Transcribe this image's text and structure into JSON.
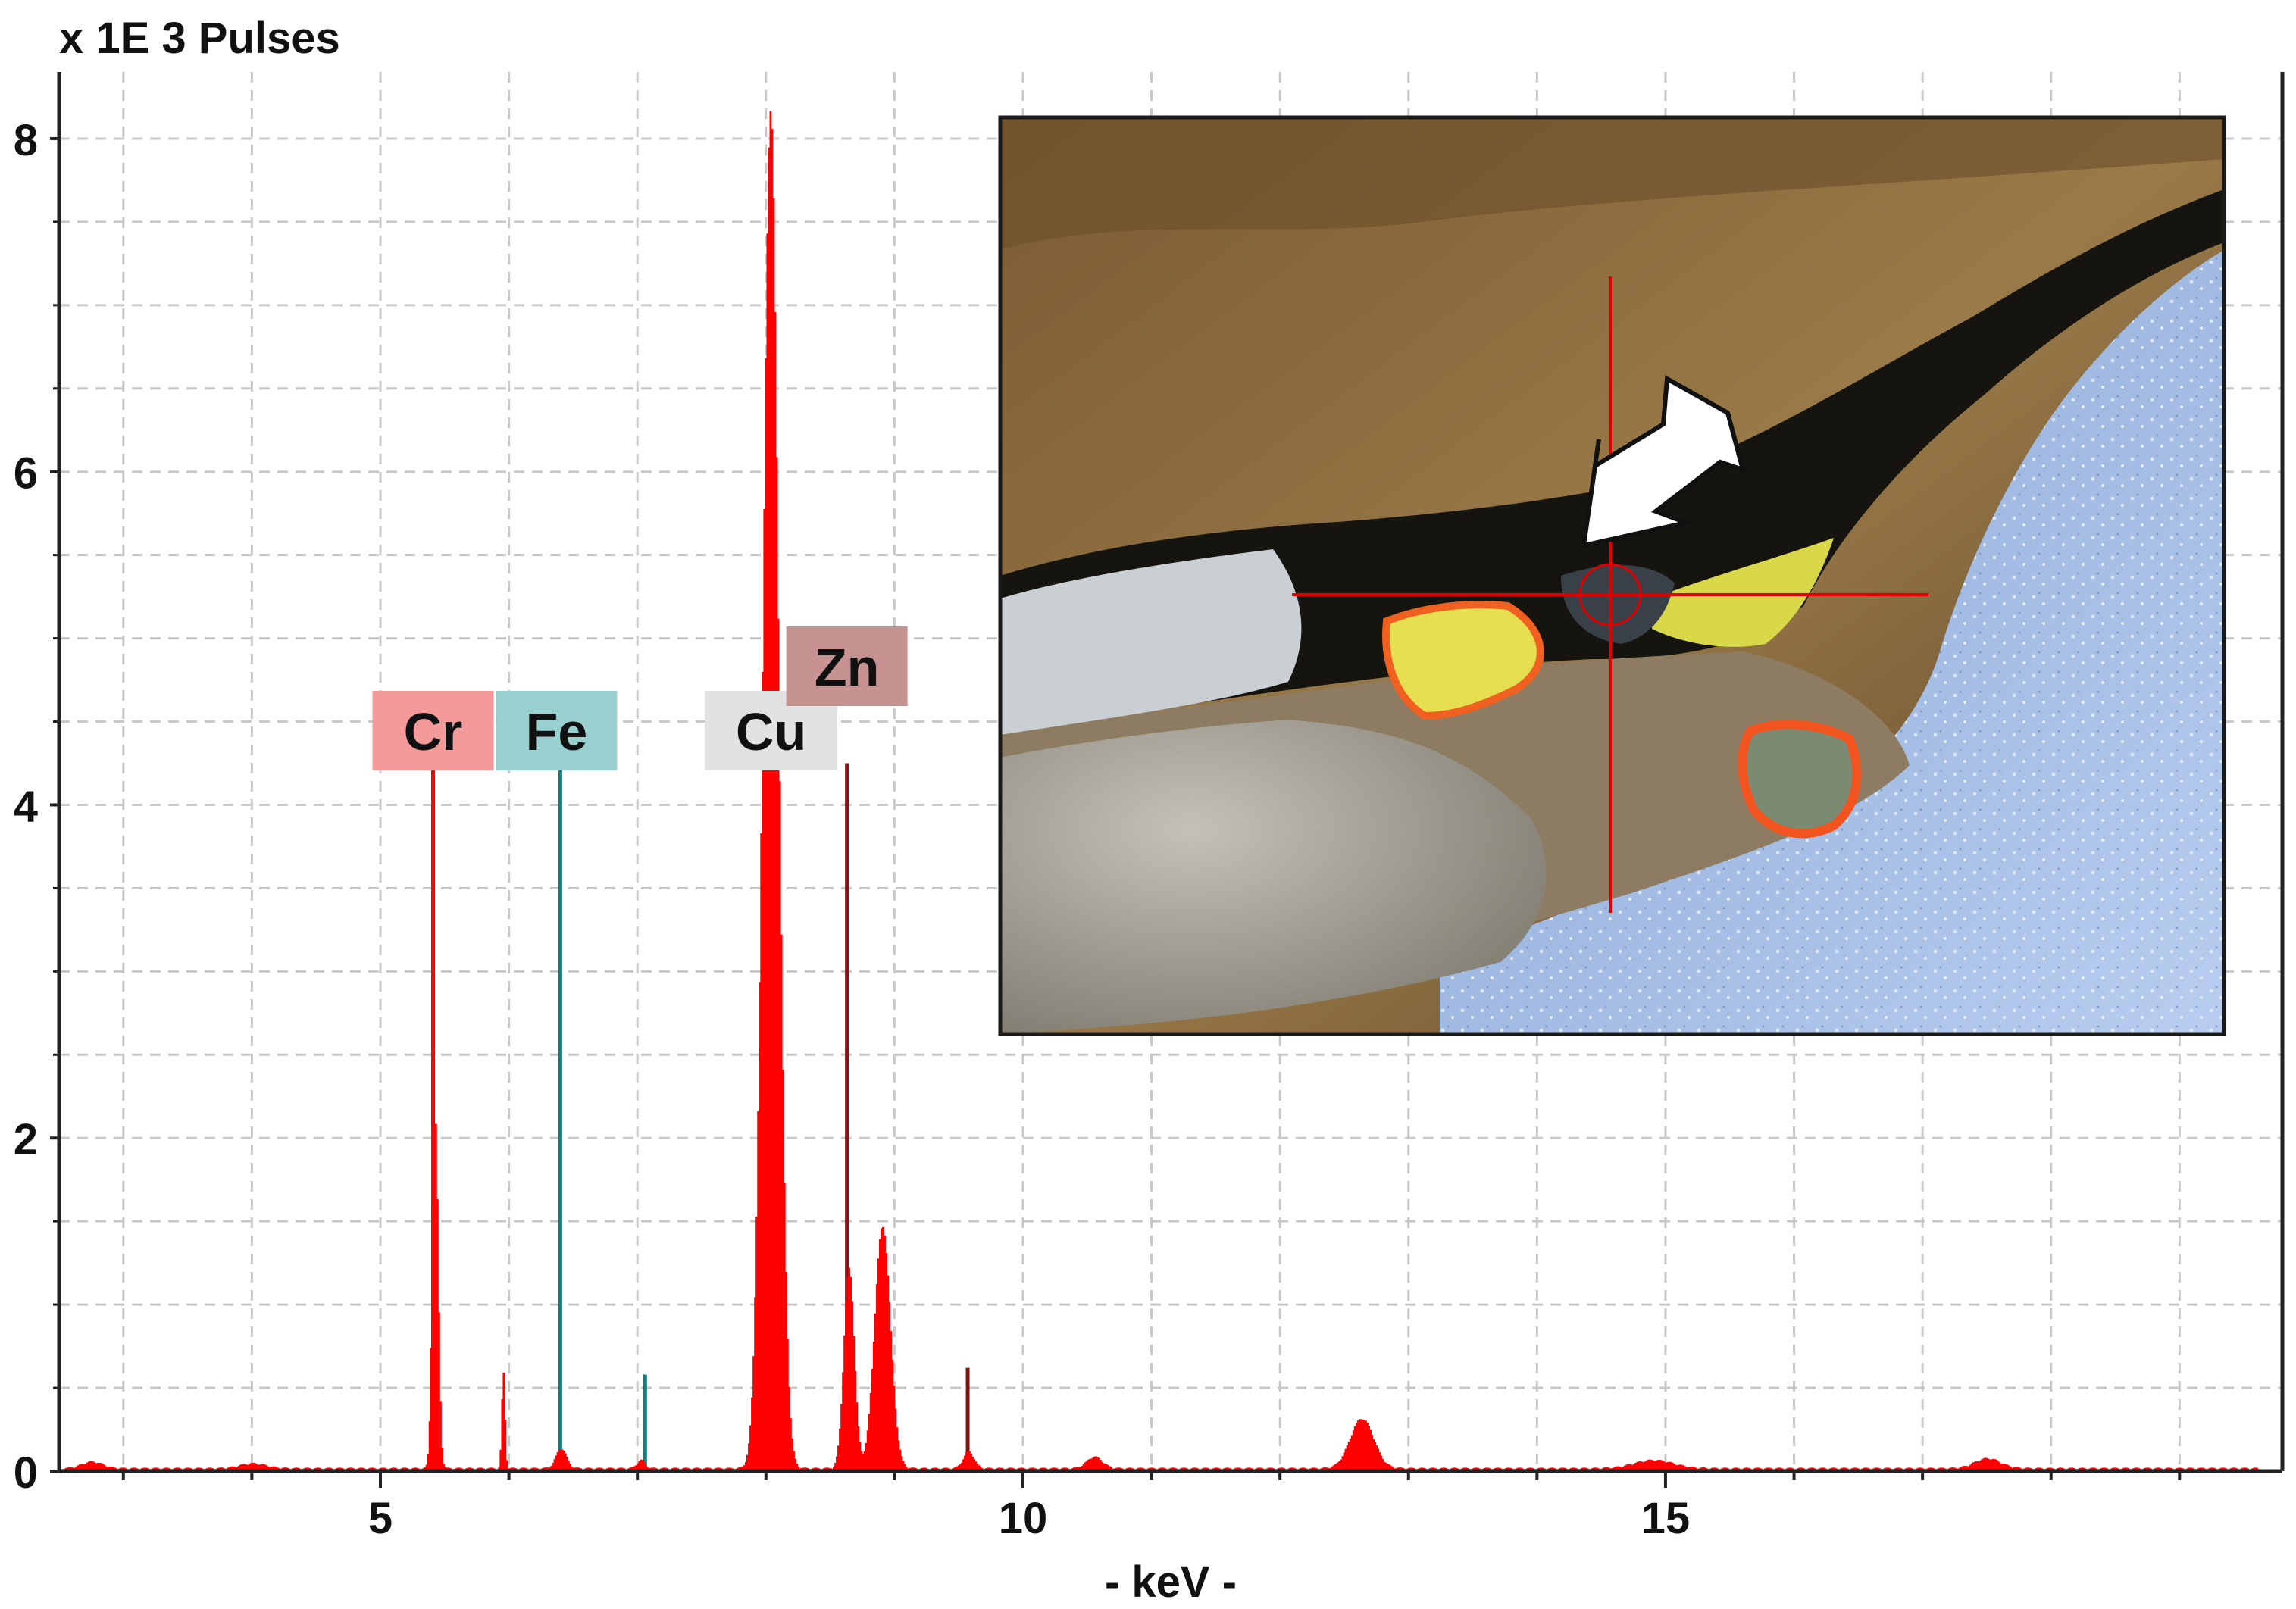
{
  "chart_data": {
    "type": "bar",
    "title": "x 1E 3 Pulses",
    "xlabel": "- keV -",
    "ylabel": "",
    "xlim": [
      2.5,
      19.8
    ],
    "ylim": [
      0,
      8.4
    ],
    "x_ticks": [
      5,
      10,
      15
    ],
    "x_tick_labels": [
      "5",
      "10",
      "15"
    ],
    "y_ticks": [
      0,
      2,
      4,
      6,
      8
    ],
    "y_tick_labels": [
      "0",
      "2",
      "4",
      "6",
      "8"
    ],
    "grid": true,
    "series": [
      {
        "color": "#ff0000",
        "peaks": [
          {
            "center": 2.75,
            "height": 0.04,
            "width": 0.08
          },
          {
            "center": 4.0,
            "height": 0.03,
            "width": 0.1
          },
          {
            "center": 5.42,
            "height": 2.1,
            "width": 0.022
          },
          {
            "center": 5.95,
            "height": 0.58,
            "width": 0.012
          },
          {
            "center": 6.4,
            "height": 0.12,
            "width": 0.04
          },
          {
            "center": 7.02,
            "height": 0.05,
            "width": 0.03
          },
          {
            "center": 8.03,
            "height": 8.15,
            "width": 0.06
          },
          {
            "center": 8.9,
            "height": 1.45,
            "width": 0.06
          },
          {
            "center": 8.64,
            "height": 1.2,
            "width": 0.04
          },
          {
            "center": 9.57,
            "height": 0.1,
            "width": 0.04
          },
          {
            "center": 10.55,
            "height": 0.07,
            "width": 0.06
          },
          {
            "center": 12.63,
            "height": 0.3,
            "width": 0.09
          },
          {
            "center": 14.9,
            "height": 0.05,
            "width": 0.15
          },
          {
            "center": 17.5,
            "height": 0.06,
            "width": 0.1
          }
        ],
        "baseline": 0.015
      }
    ],
    "element_lines": [
      {
        "element": "Cr",
        "energy": 5.41,
        "height": 4.25,
        "line_color": "#ff0000",
        "label_bg": "#f49a9a"
      },
      {
        "element": "Fe",
        "energy": 6.4,
        "height": 4.25,
        "line_color": "#0a8080",
        "label_bg": "#98cfcf"
      },
      {
        "element": "Fe",
        "energy": 7.06,
        "height": 0.58,
        "line_color": "#0a8080",
        "label_bg": ""
      },
      {
        "element": "Cu",
        "energy": 8.04,
        "height": 4.25,
        "line_color": "#c8c8c8",
        "label_bg": "#e2e2e2"
      },
      {
        "element": "Zn",
        "energy": 8.63,
        "height": 4.25,
        "line_color": "#8b1010",
        "label_bg": "#c79292"
      },
      {
        "element": "Zn",
        "energy": 9.57,
        "height": 0.62,
        "line_color": "#8b1010",
        "label_bg": ""
      }
    ]
  },
  "labels": {
    "cr": "Cr",
    "fe": "Fe",
    "cu": "Cu",
    "zn": "Zn"
  },
  "inset": {
    "kind": "micrograph",
    "crosshair_color": "#e00000",
    "arrow_color": "#ffffff"
  }
}
